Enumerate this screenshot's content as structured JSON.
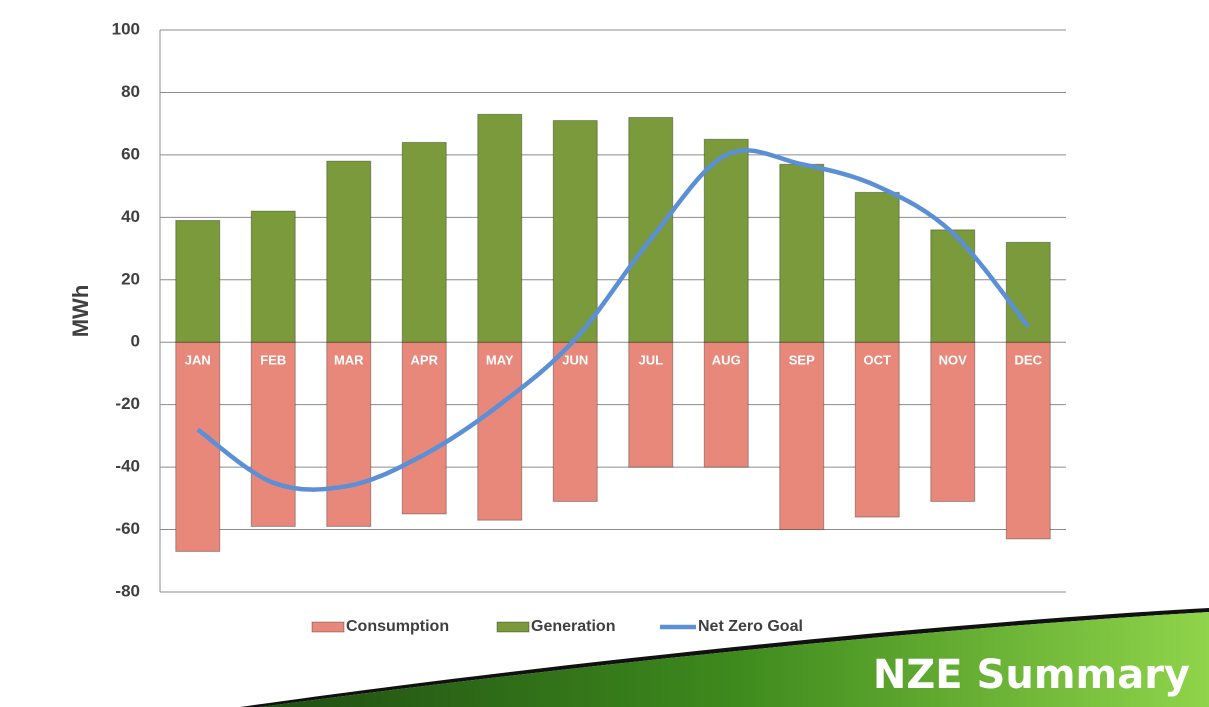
{
  "slide_title": "NZE Summary",
  "chart_data": {
    "type": "bar",
    "y_label": "MWh",
    "categories": [
      "JAN",
      "FEB",
      "MAR",
      "APR",
      "MAY",
      "JUN",
      "JUL",
      "AUG",
      "SEP",
      "OCT",
      "NOV",
      "DEC"
    ],
    "series": [
      {
        "name": "Consumption",
        "type": "bar",
        "color": "#e8887a",
        "values": [
          -67,
          -59,
          -59,
          -55,
          -57,
          -51,
          -40,
          -40,
          -60,
          -56,
          -51,
          -63
        ]
      },
      {
        "name": "Generation",
        "type": "bar",
        "color": "#7a9a3c",
        "values": [
          39,
          42,
          58,
          64,
          73,
          71,
          72,
          65,
          57,
          48,
          36,
          32
        ]
      },
      {
        "name": "Net Zero Goal",
        "type": "line",
        "color": "#5b8fd6",
        "values": [
          -28,
          -45,
          -46,
          -36,
          -20,
          1,
          33,
          60,
          57,
          50,
          35,
          5
        ]
      }
    ],
    "ylim": [
      -80,
      100
    ],
    "yticks": [
      -80,
      -60,
      -40,
      -20,
      0,
      20,
      40,
      60,
      80,
      100
    ],
    "grid": true
  }
}
